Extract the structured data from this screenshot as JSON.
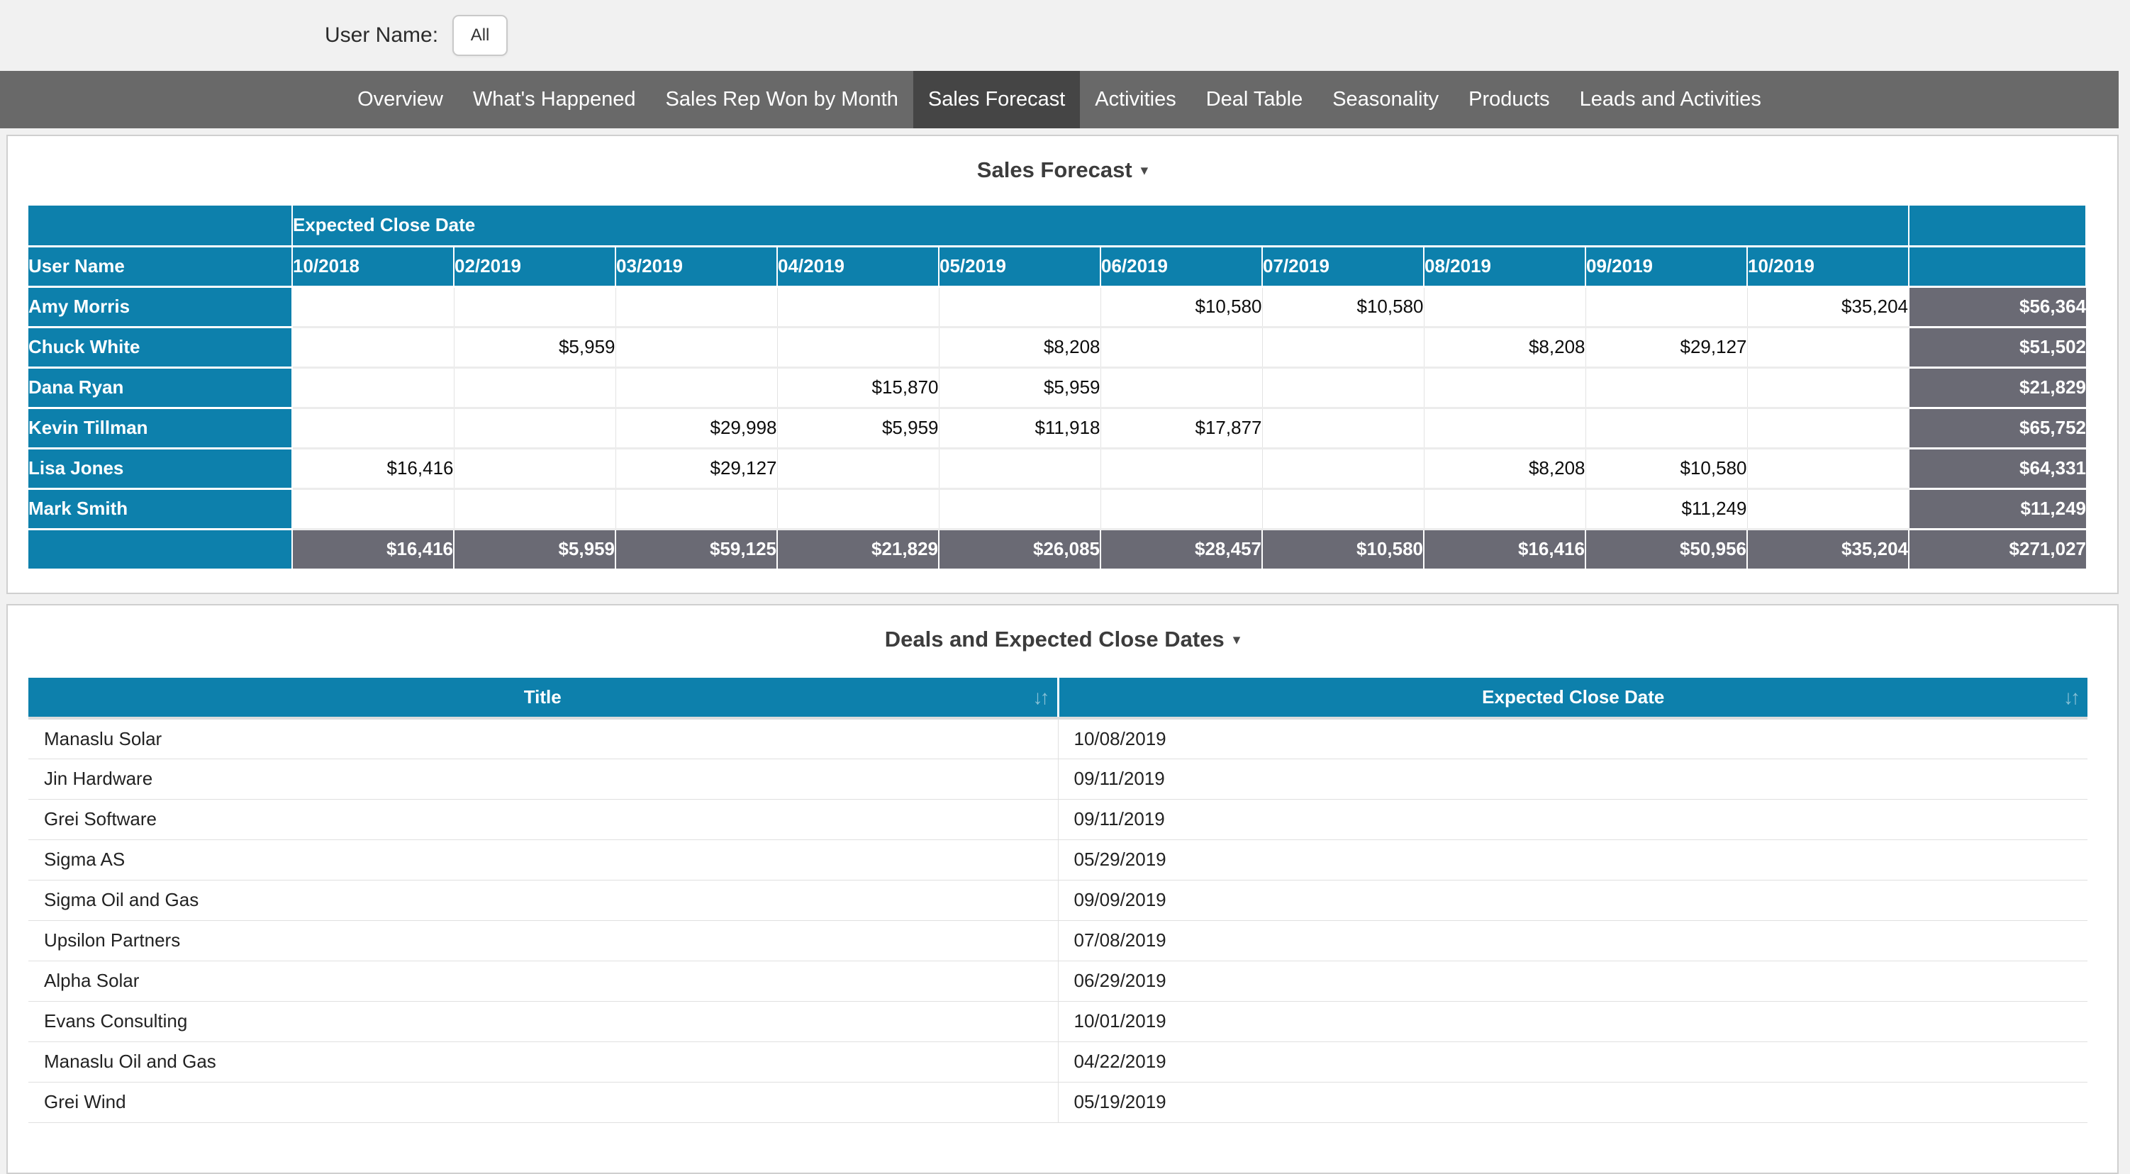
{
  "colors": {
    "accent_teal": "#0d80ac",
    "total_gray": "#6a6a74",
    "nav_bg": "#696969",
    "nav_active_bg": "#454545",
    "page_bg": "#f1f1f1"
  },
  "filter_bar": {
    "label": "User Name:",
    "value": "All"
  },
  "nav": {
    "tabs": [
      {
        "label": "Overview",
        "active": false
      },
      {
        "label": "What's Happened",
        "active": false
      },
      {
        "label": "Sales Rep Won by Month",
        "active": false
      },
      {
        "label": "Sales Forecast",
        "active": true
      },
      {
        "label": "Activities",
        "active": false
      },
      {
        "label": "Deal Table",
        "active": false
      },
      {
        "label": "Seasonality",
        "active": false
      },
      {
        "label": "Products",
        "active": false
      },
      {
        "label": "Leads and Activities",
        "active": false
      }
    ]
  },
  "pivot": {
    "title": "Sales Forecast",
    "caret": "▾",
    "band_header": "Expected Close Date",
    "row_header": "User Name",
    "columns": [
      "10/2018",
      "02/2019",
      "03/2019",
      "04/2019",
      "05/2019",
      "06/2019",
      "07/2019",
      "08/2019",
      "09/2019",
      "10/2019"
    ],
    "rows": [
      {
        "name": "Amy Morris",
        "values": [
          "",
          "",
          "",
          "",
          "",
          "$10,580",
          "$10,580",
          "",
          "",
          "$35,204"
        ],
        "total": "$56,364"
      },
      {
        "name": "Chuck White",
        "values": [
          "",
          "$5,959",
          "",
          "",
          "$8,208",
          "",
          "",
          "$8,208",
          "$29,127",
          ""
        ],
        "total": "$51,502"
      },
      {
        "name": "Dana Ryan",
        "values": [
          "",
          "",
          "",
          "$15,870",
          "$5,959",
          "",
          "",
          "",
          "",
          ""
        ],
        "total": "$21,829"
      },
      {
        "name": "Kevin Tillman",
        "values": [
          "",
          "",
          "$29,998",
          "$5,959",
          "$11,918",
          "$17,877",
          "",
          "",
          "",
          ""
        ],
        "total": "$65,752"
      },
      {
        "name": "Lisa Jones",
        "values": [
          "$16,416",
          "",
          "$29,127",
          "",
          "",
          "",
          "",
          "$8,208",
          "$10,580",
          ""
        ],
        "total": "$64,331"
      },
      {
        "name": "Mark Smith",
        "values": [
          "",
          "",
          "",
          "",
          "",
          "",
          "",
          "",
          "$11,249",
          ""
        ],
        "total": "$11,249"
      }
    ],
    "totals_row": {
      "values": [
        "$16,416",
        "$5,959",
        "$59,125",
        "$21,829",
        "$26,085",
        "$28,457",
        "$10,580",
        "$16,416",
        "$50,956",
        "$35,204"
      ],
      "grand_total": "$271,027"
    }
  },
  "deals": {
    "title": "Deals and Expected Close Dates",
    "caret": "▾",
    "sort_icon": "↓↑",
    "columns": [
      "Title",
      "Expected Close Date"
    ],
    "rows": [
      {
        "title": "Manaslu Solar",
        "date": "10/08/2019"
      },
      {
        "title": "Jin Hardware",
        "date": "09/11/2019"
      },
      {
        "title": "Grei Software",
        "date": "09/11/2019"
      },
      {
        "title": "Sigma AS",
        "date": "05/29/2019"
      },
      {
        "title": "Sigma Oil and Gas",
        "date": "09/09/2019"
      },
      {
        "title": "Upsilon Partners",
        "date": "07/08/2019"
      },
      {
        "title": "Alpha Solar",
        "date": "06/29/2019"
      },
      {
        "title": "Evans Consulting",
        "date": "10/01/2019"
      },
      {
        "title": "Manaslu Oil and Gas",
        "date": "04/22/2019"
      },
      {
        "title": "Grei Wind",
        "date": "05/19/2019"
      }
    ]
  }
}
